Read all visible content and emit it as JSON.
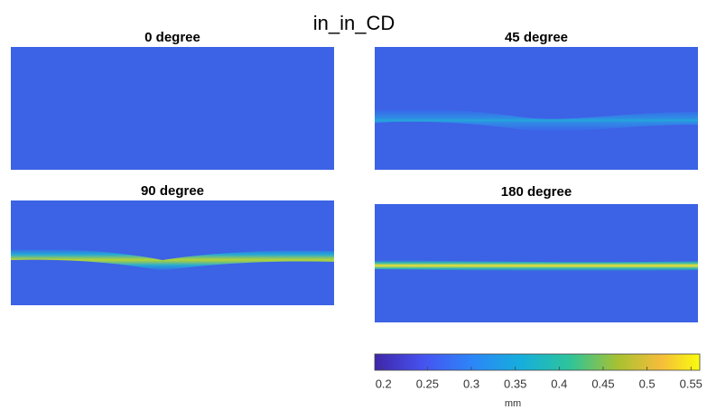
{
  "title": "in_in_CD",
  "panels": [
    {
      "title": "0 degree"
    },
    {
      "title": "45 degree"
    },
    {
      "title": "90 degree"
    },
    {
      "title": "180 degree"
    }
  ],
  "colorbar": {
    "label": "mm",
    "lim": [
      0.19,
      0.56
    ],
    "ticks": [
      0.2,
      0.25,
      0.3,
      0.35,
      0.4,
      0.45,
      0.5,
      0.55
    ]
  }
}
